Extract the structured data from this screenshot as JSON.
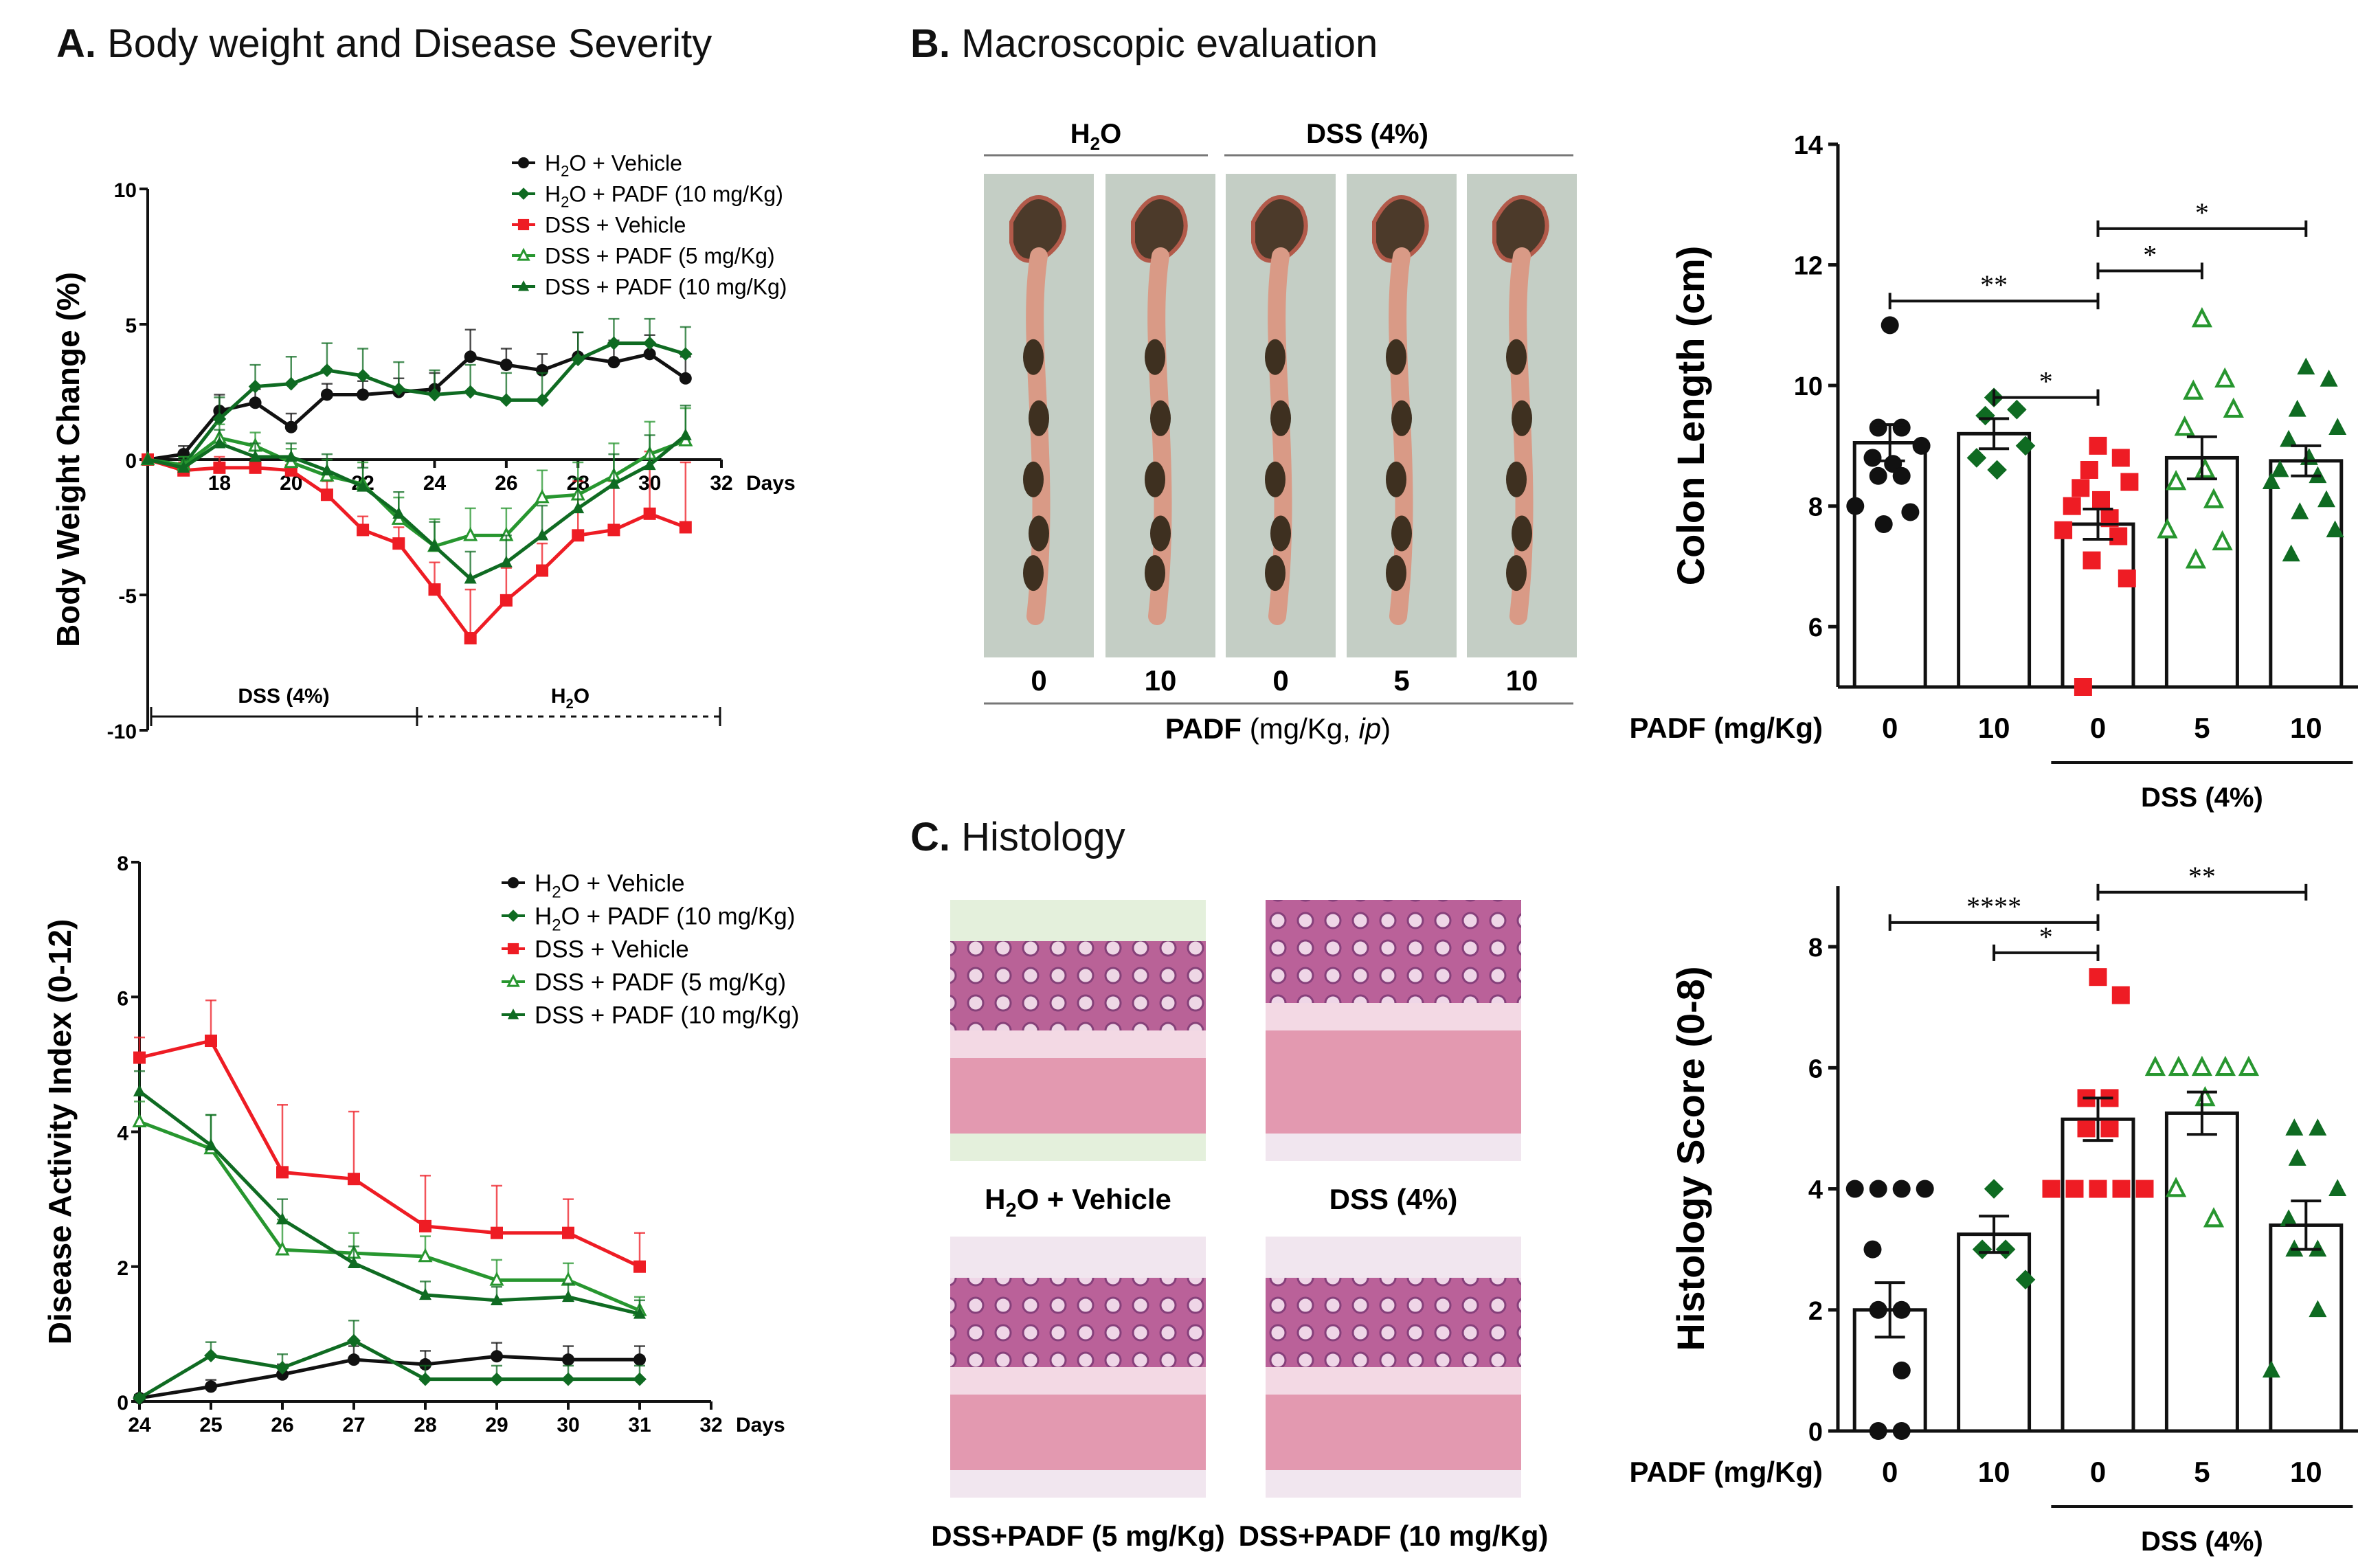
{
  "panels": {
    "a_letter": "A.",
    "a_title": "Body weight and Disease Severity",
    "b_letter": "B.",
    "b_title": "Macroscopic evaluation",
    "c_letter": "C.",
    "c_title": "Histology"
  },
  "colors": {
    "black": "#111111",
    "red": "#ee1c24",
    "light_green": "#27962f",
    "dark_green": "#0f6b22"
  },
  "photos": {
    "group_h2o": "H2O",
    "group_dss": "DSS (4%)",
    "doses": [
      "0",
      "10",
      "0",
      "5",
      "10"
    ],
    "padf_prefix": "PADF",
    "padf_unit": " (mg/Kg, ",
    "padf_route": "ip",
    "padf_close": ")"
  },
  "histology_images": [
    {
      "caption": "H2O + Vehicle"
    },
    {
      "caption": "DSS (4%)"
    },
    {
      "caption": "DSS+PADF (5 mg/Kg)"
    },
    {
      "caption": "DSS+PADF (10 mg/Kg)"
    }
  ],
  "chart_data": [
    {
      "id": "body_weight",
      "type": "line",
      "title": "",
      "xlabel": "Days",
      "ylabel": "Body Weight Change (%)",
      "xlim": [
        16,
        32
      ],
      "ylim": [
        -10,
        10
      ],
      "xticks": [
        18,
        20,
        22,
        24,
        26,
        28,
        30,
        32
      ],
      "yticks": [
        -10,
        -5,
        0,
        5,
        10
      ],
      "legend_position": "top-right",
      "phase_labels": [
        "DSS (4%)",
        "H2O"
      ],
      "series": [
        {
          "name": "H2O + Vehicle",
          "color": "#111111",
          "marker": "circle",
          "x": [
            16,
            17,
            18,
            19,
            20,
            21,
            22,
            23,
            24,
            25,
            26,
            27,
            28,
            29,
            30,
            31
          ],
          "y": [
            0,
            0.2,
            1.8,
            2.1,
            1.2,
            2.4,
            2.4,
            2.5,
            2.6,
            3.8,
            3.5,
            3.3,
            3.8,
            3.6,
            3.9,
            3.0
          ],
          "err": [
            0,
            0.3,
            0.6,
            0.5,
            0.5,
            0.4,
            0.5,
            0.5,
            0.6,
            1.0,
            0.6,
            0.6,
            0.9,
            0.8,
            0.7,
            0.8
          ]
        },
        {
          "name": "H2O + PADF (10 mg/Kg)",
          "color": "#0f6b22",
          "marker": "diamond",
          "x": [
            16,
            17,
            18,
            19,
            20,
            21,
            22,
            23,
            24,
            25,
            26,
            27,
            28,
            29,
            30,
            31
          ],
          "y": [
            0,
            -0.2,
            1.5,
            2.7,
            2.8,
            3.3,
            3.1,
            2.6,
            2.4,
            2.5,
            2.2,
            2.2,
            3.7,
            4.3,
            4.3,
            3.9
          ],
          "err": [
            0,
            0.3,
            0.8,
            0.8,
            1.0,
            1.0,
            1.0,
            1.0,
            0.9,
            1.0,
            1.0,
            1.0,
            1.0,
            0.9,
            0.9,
            1.0
          ]
        },
        {
          "name": "DSS + Vehicle",
          "color": "#ee1c24",
          "marker": "square",
          "x": [
            16,
            17,
            18,
            19,
            20,
            21,
            22,
            23,
            24,
            25,
            26,
            27,
            28,
            29,
            30,
            31
          ],
          "y": [
            0,
            -0.4,
            -0.3,
            -0.3,
            -0.4,
            -1.3,
            -2.6,
            -3.1,
            -4.8,
            -6.6,
            -5.2,
            -4.1,
            -2.8,
            -2.6,
            -2.0,
            -2.5
          ],
          "err": [
            0,
            0.3,
            0.4,
            0.4,
            0.4,
            0.5,
            0.5,
            0.6,
            1.0,
            1.8,
            1.2,
            1.0,
            2.0,
            1.8,
            2.3,
            2.4
          ]
        },
        {
          "name": "DSS + PADF (5 mg/Kg)",
          "color": "#27962f",
          "marker": "triangle-open",
          "x": [
            16,
            17,
            18,
            19,
            20,
            21,
            22,
            23,
            24,
            25,
            26,
            27,
            28,
            29,
            30,
            31
          ],
          "y": [
            0,
            -0.2,
            0.8,
            0.5,
            -0.1,
            -0.6,
            -0.9,
            -2.2,
            -3.2,
            -2.8,
            -2.8,
            -1.4,
            -1.3,
            -0.6,
            0.2,
            0.7
          ],
          "err": [
            0,
            0.3,
            0.5,
            0.5,
            0.5,
            0.6,
            0.8,
            0.8,
            1.0,
            1.0,
            1.0,
            1.0,
            1.2,
            1.2,
            1.2,
            1.2
          ]
        },
        {
          "name": "DSS + PADF (10 mg/Kg)",
          "color": "#0f6b22",
          "marker": "triangle",
          "x": [
            16,
            17,
            18,
            19,
            20,
            21,
            22,
            23,
            24,
            25,
            26,
            27,
            28,
            29,
            30,
            31
          ],
          "y": [
            0,
            -0.3,
            0.6,
            0.1,
            0.1,
            -0.4,
            -1.0,
            -2.0,
            -3.2,
            -4.4,
            -3.8,
            -2.8,
            -1.8,
            -0.9,
            -0.2,
            0.9
          ],
          "err": [
            0,
            0.3,
            0.5,
            0.5,
            0.5,
            0.6,
            0.7,
            0.8,
            0.9,
            1.0,
            1.0,
            1.1,
            1.1,
            1.1,
            1.1,
            1.1
          ]
        }
      ]
    },
    {
      "id": "disease_activity",
      "type": "line",
      "title": "",
      "xlabel": "Days",
      "ylabel": "Disease Activity Index (0-12)",
      "xlim": [
        24,
        32
      ],
      "ylim": [
        0,
        8
      ],
      "xticks": [
        24,
        25,
        26,
        27,
        28,
        29,
        30,
        31,
        32
      ],
      "yticks": [
        0,
        2,
        4,
        6,
        8
      ],
      "legend_position": "top-right",
      "series": [
        {
          "name": "H2O + Vehicle",
          "color": "#111111",
          "marker": "circle",
          "x": [
            24,
            25,
            26,
            27,
            28,
            29,
            30,
            31
          ],
          "y": [
            0.05,
            0.22,
            0.4,
            0.62,
            0.55,
            0.67,
            0.62,
            0.62
          ],
          "err": [
            0.05,
            0.1,
            0.15,
            0.2,
            0.2,
            0.2,
            0.2,
            0.2
          ]
        },
        {
          "name": "H2O + PADF (10 mg/Kg)",
          "color": "#0f6b22",
          "marker": "diamond",
          "x": [
            24,
            25,
            26,
            27,
            28,
            29,
            30,
            31
          ],
          "y": [
            0.05,
            0.68,
            0.5,
            0.9,
            0.33,
            0.33,
            0.33,
            0.33
          ],
          "err": [
            0.05,
            0.2,
            0.2,
            0.3,
            0.2,
            0.2,
            0.2,
            0.2
          ]
        },
        {
          "name": "DSS + Vehicle",
          "color": "#ee1c24",
          "marker": "square",
          "x": [
            24,
            25,
            26,
            27,
            28,
            29,
            30,
            31
          ],
          "y": [
            5.1,
            5.35,
            3.4,
            3.3,
            2.6,
            2.5,
            2.5,
            2.0
          ],
          "err": [
            0.3,
            0.6,
            1.0,
            1.0,
            0.75,
            0.7,
            0.5,
            0.5
          ]
        },
        {
          "name": "DSS + PADF (5 mg/Kg)",
          "color": "#27962f",
          "marker": "triangle-open",
          "x": [
            24,
            25,
            26,
            27,
            28,
            29,
            30,
            31
          ],
          "y": [
            4.15,
            3.75,
            2.25,
            2.2,
            2.15,
            1.8,
            1.8,
            1.35
          ],
          "err": [
            0.3,
            0.5,
            0.45,
            0.3,
            0.3,
            0.3,
            0.25,
            0.2
          ]
        },
        {
          "name": "DSS + PADF (10 mg/Kg)",
          "color": "#0f6b22",
          "marker": "triangle",
          "x": [
            24,
            25,
            26,
            27,
            28,
            29,
            30,
            31
          ],
          "y": [
            4.6,
            3.8,
            2.7,
            2.05,
            1.58,
            1.5,
            1.55,
            1.3
          ],
          "err": [
            0.3,
            0.45,
            0.3,
            0.25,
            0.2,
            0.2,
            0.2,
            0.2
          ]
        }
      ]
    },
    {
      "id": "colon_length",
      "type": "bar",
      "title": "",
      "xlabel": "PADF (mg/Kg)",
      "ylabel": "Colon Length (cm)",
      "ylim": [
        5,
        14
      ],
      "yticks": [
        6,
        8,
        10,
        12,
        14
      ],
      "categories": [
        "0",
        "10",
        "0",
        "5",
        "10"
      ],
      "group_label": "DSS (4%)",
      "means": [
        9.05,
        9.2,
        7.7,
        8.8,
        8.75
      ],
      "sem": [
        0.3,
        0.25,
        0.25,
        0.35,
        0.25
      ],
      "points": [
        [
          11.0,
          9.3,
          9.3,
          9.0,
          8.8,
          8.7,
          8.5,
          8.5,
          8.0,
          7.9,
          7.7
        ],
        [
          9.8,
          9.6,
          9.5,
          9.0,
          8.8,
          8.6
        ],
        [
          9.0,
          8.8,
          8.6,
          8.4,
          8.3,
          8.1,
          8.0,
          7.8,
          7.6,
          7.5,
          7.1,
          6.8,
          5.0
        ],
        [
          11.1,
          10.1,
          9.9,
          9.6,
          9.3,
          8.6,
          8.4,
          8.1,
          7.6,
          7.4,
          7.1
        ],
        [
          10.3,
          10.1,
          9.6,
          9.3,
          9.1,
          8.8,
          8.6,
          8.5,
          8.4,
          8.1,
          7.9,
          7.6,
          7.2
        ]
      ],
      "point_colors": [
        "#111111",
        "#0f6b22",
        "#ee1c24",
        "#27962f",
        "#0f6b22"
      ],
      "point_markers": [
        "circle",
        "diamond",
        "square",
        "triangle-open",
        "triangle"
      ],
      "significance": [
        {
          "from": 0,
          "to": 2,
          "level": 11.4,
          "label": "**"
        },
        {
          "from": 1,
          "to": 2,
          "level": 9.8,
          "label": "*"
        },
        {
          "from": 2,
          "to": 3,
          "level": 11.9,
          "label": "*"
        },
        {
          "from": 2,
          "to": 4,
          "level": 12.6,
          "label": "*"
        }
      ]
    },
    {
      "id": "histology_score",
      "type": "bar",
      "title": "",
      "xlabel": "PADF (mg/Kg)",
      "ylabel": "Histology Score (0-8)",
      "ylim": [
        0,
        9
      ],
      "yticks": [
        0,
        2,
        4,
        6,
        8
      ],
      "categories": [
        "0",
        "10",
        "0",
        "5",
        "10"
      ],
      "group_label": "DSS (4%)",
      "means": [
        2.0,
        3.25,
        5.15,
        5.25,
        3.4
      ],
      "sem": [
        0.45,
        0.3,
        0.35,
        0.35,
        0.4
      ],
      "points": [
        [
          4,
          4,
          4,
          4,
          3,
          2,
          2,
          1,
          0,
          0
        ],
        [
          4,
          3,
          3,
          2.5
        ],
        [
          7.5,
          7.2,
          5.5,
          5.5,
          5,
          5,
          4,
          4,
          4,
          4,
          4
        ],
        [
          6,
          6,
          6,
          6,
          6,
          5.5,
          4,
          3.5
        ],
        [
          5,
          5,
          4.5,
          4,
          3.5,
          3,
          3,
          2,
          1
        ]
      ],
      "point_colors": [
        "#111111",
        "#0f6b22",
        "#ee1c24",
        "#27962f",
        "#0f6b22"
      ],
      "point_markers": [
        "circle",
        "diamond",
        "square",
        "triangle-open",
        "triangle"
      ],
      "significance": [
        {
          "from": 0,
          "to": 2,
          "level": 8.4,
          "label": "****"
        },
        {
          "from": 1,
          "to": 2,
          "level": 7.9,
          "label": "*"
        },
        {
          "from": 2,
          "to": 4,
          "level": 8.9,
          "label": "**"
        }
      ]
    }
  ]
}
